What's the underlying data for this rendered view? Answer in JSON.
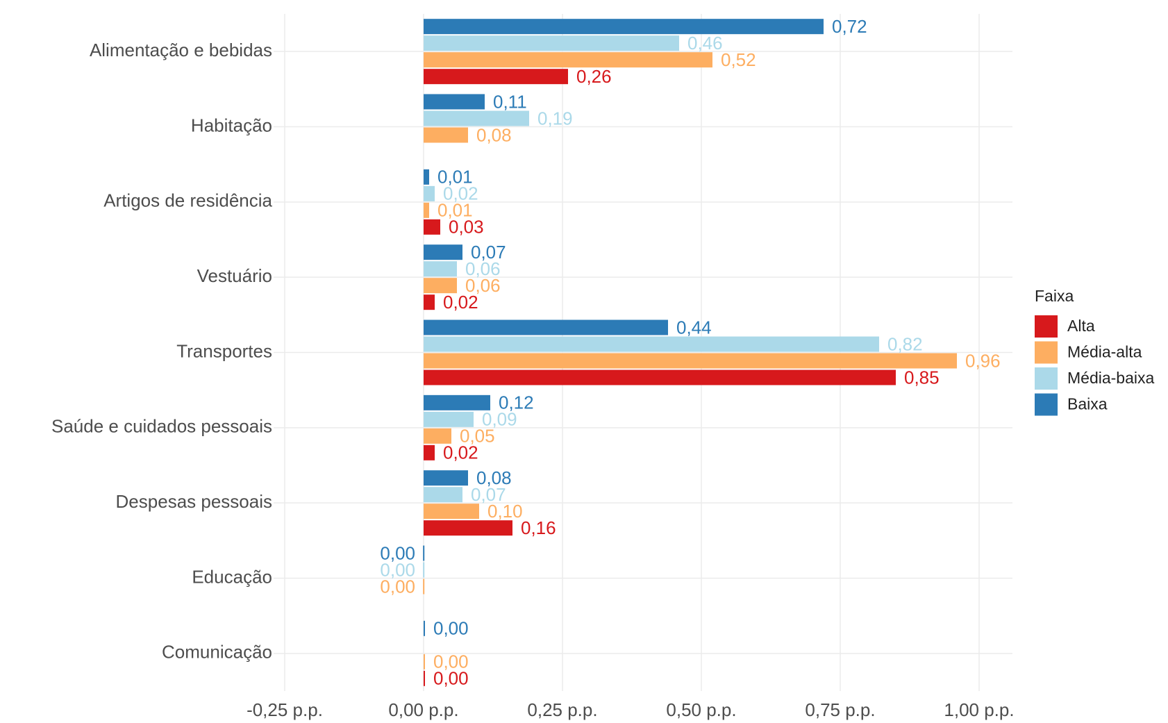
{
  "chart_data": {
    "type": "bar",
    "orientation": "horizontal",
    "categories": [
      "Alimentação e bebidas",
      "Habitação",
      "Artigos de residência",
      "Vestuário",
      "Transportes",
      "Saúde e cuidados pessoais",
      "Despesas pessoais",
      "Educação",
      "Comunicação"
    ],
    "legend_title": "Faixa",
    "legend_position": "right",
    "grid": true,
    "series": [
      {
        "name": "Alta",
        "color": "#d7191c",
        "values": [
          0.26,
          null,
          0.03,
          0.02,
          0.85,
          0.02,
          0.16,
          null,
          0.0
        ],
        "value_labels": [
          "0,26",
          null,
          "0,03",
          "0,02",
          "0,85",
          "0,02",
          "0,16",
          null,
          "0,00"
        ]
      },
      {
        "name": "Média-alta",
        "color": "#fdae61",
        "values": [
          0.52,
          0.08,
          0.01,
          0.06,
          0.96,
          0.05,
          0.1,
          -0.001,
          0.0
        ],
        "value_labels": [
          "0,52",
          "0,08",
          "0,01",
          "0,06",
          "0,96",
          "0,05",
          "0,10",
          "0,00",
          "0,00"
        ]
      },
      {
        "name": "Média-baixa",
        "color": "#abd9e9",
        "values": [
          0.46,
          0.19,
          0.02,
          0.06,
          0.82,
          0.09,
          0.07,
          -0.001,
          null
        ],
        "value_labels": [
          "0,46",
          "0,19",
          "0,02",
          "0,06",
          "0,82",
          "0,09",
          "0,07",
          "0,00",
          null
        ]
      },
      {
        "name": "Baixa",
        "color": "#2c7bb6",
        "values": [
          0.72,
          0.11,
          0.01,
          0.07,
          0.44,
          0.12,
          0.08,
          -0.001,
          0.0
        ],
        "value_labels": [
          "0,72",
          "0,11",
          "0,01",
          "0,07",
          "0,44",
          "0,12",
          "0,08",
          "0,00",
          "0,00"
        ]
      }
    ],
    "xlim": [
      -0.27,
      1.06
    ],
    "xticks": [
      {
        "value": -0.25,
        "label": "-0,25 p.p."
      },
      {
        "value": 0,
        "label": "0,00 p.p."
      },
      {
        "value": 0.25,
        "label": "0,25 p.p."
      },
      {
        "value": 0.5,
        "label": "0,50 p.p."
      },
      {
        "value": 0.75,
        "label": "0,75 p.p."
      },
      {
        "value": 1,
        "label": "1,00 p.p."
      }
    ]
  }
}
